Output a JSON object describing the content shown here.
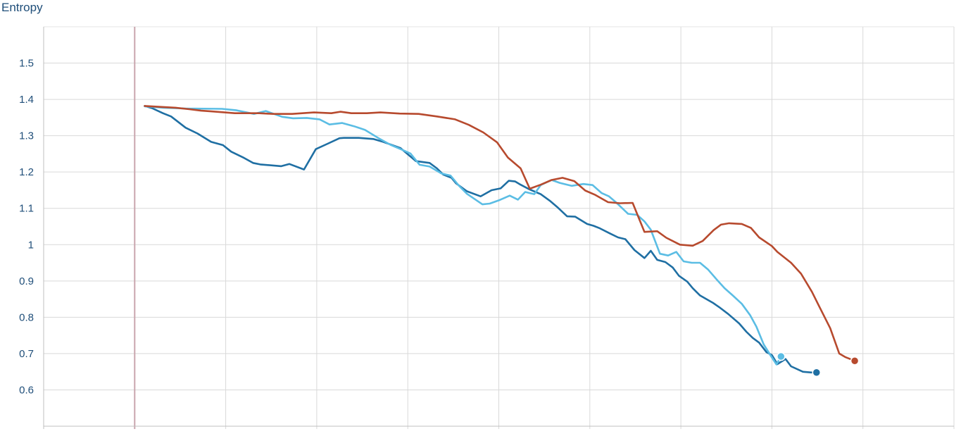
{
  "chart_data": {
    "type": "line",
    "title": "Entropy",
    "xlabel": "",
    "ylabel": "",
    "ylim": [
      0.5,
      1.6
    ],
    "yticks": [
      "0.6",
      "0.7",
      "0.8",
      "0.9",
      "1",
      "1.1",
      "1.2",
      "1.3",
      "1.4",
      "1.5"
    ],
    "x_gridlines": 10,
    "grid": true,
    "legend": "none",
    "series": [
      {
        "color": "#1f6fa3",
        "x": [
          1.11,
          1.19,
          1.31,
          1.4,
          1.56,
          1.69,
          1.84,
          1.97,
          2.06,
          2.2,
          2.3,
          2.38,
          2.61,
          2.7,
          2.86,
          2.99,
          3.12,
          3.25,
          3.3,
          3.46,
          3.62,
          3.73,
          3.92,
          4.09,
          4.24,
          4.32,
          4.39,
          4.48,
          4.53,
          4.65,
          4.8,
          4.92,
          5.02,
          5.11,
          5.18,
          5.24,
          5.33,
          5.46,
          5.56,
          5.64,
          5.75,
          5.84,
          5.97,
          6.04,
          6.11,
          6.22,
          6.31,
          6.39,
          6.49,
          6.6,
          6.67,
          6.74,
          6.83,
          6.91,
          6.98,
          7.07,
          7.13,
          7.21,
          7.35,
          7.42,
          7.52,
          7.64,
          7.72,
          7.79,
          7.86,
          7.94,
          8.0,
          8.06,
          8.15,
          8.21,
          8.34,
          8.43,
          8.49
        ],
        "y": [
          1.382,
          1.376,
          1.362,
          1.353,
          1.322,
          1.306,
          1.283,
          1.274,
          1.256,
          1.239,
          1.225,
          1.221,
          1.216,
          1.222,
          1.207,
          1.263,
          1.278,
          1.293,
          1.294,
          1.294,
          1.291,
          1.283,
          1.266,
          1.23,
          1.225,
          1.21,
          1.193,
          1.184,
          1.169,
          1.147,
          1.133,
          1.15,
          1.155,
          1.176,
          1.174,
          1.165,
          1.153,
          1.139,
          1.121,
          1.104,
          1.078,
          1.077,
          1.057,
          1.052,
          1.045,
          1.031,
          1.02,
          1.015,
          0.985,
          0.963,
          0.983,
          0.958,
          0.952,
          0.937,
          0.914,
          0.898,
          0.88,
          0.86,
          0.84,
          0.828,
          0.809,
          0.783,
          0.76,
          0.743,
          0.73,
          0.704,
          0.696,
          0.671,
          0.685,
          0.665,
          0.65,
          0.648,
          0.648
        ]
      },
      {
        "color": "#5bbde4",
        "x": [
          1.11,
          1.31,
          1.56,
          1.96,
          2.12,
          2.31,
          2.44,
          2.62,
          2.74,
          2.89,
          3.03,
          3.14,
          3.28,
          3.41,
          3.53,
          3.68,
          3.81,
          3.94,
          4.03,
          4.13,
          4.24,
          4.37,
          4.47,
          4.56,
          4.65,
          4.82,
          4.9,
          5.0,
          5.12,
          5.21,
          5.29,
          5.39,
          5.46,
          5.58,
          5.67,
          5.8,
          5.93,
          6.03,
          6.13,
          6.21,
          6.29,
          6.42,
          6.52,
          6.6,
          6.67,
          6.77,
          6.86,
          6.95,
          7.03,
          7.12,
          7.21,
          7.3,
          7.39,
          7.48,
          7.57,
          7.67,
          7.76,
          7.83,
          7.91,
          7.99,
          8.05,
          8.1
        ],
        "y": [
          1.381,
          1.377,
          1.375,
          1.374,
          1.37,
          1.36,
          1.368,
          1.352,
          1.348,
          1.349,
          1.345,
          1.331,
          1.335,
          1.326,
          1.316,
          1.293,
          1.275,
          1.261,
          1.251,
          1.22,
          1.215,
          1.196,
          1.19,
          1.163,
          1.14,
          1.111,
          1.113,
          1.122,
          1.135,
          1.124,
          1.145,
          1.139,
          1.164,
          1.178,
          1.17,
          1.162,
          1.167,
          1.164,
          1.142,
          1.133,
          1.116,
          1.085,
          1.082,
          1.064,
          1.041,
          0.975,
          0.97,
          0.98,
          0.954,
          0.95,
          0.95,
          0.931,
          0.905,
          0.88,
          0.86,
          0.837,
          0.806,
          0.774,
          0.725,
          0.693,
          0.67,
          0.692
        ]
      },
      {
        "color": "#b74a2e",
        "x": [
          1.11,
          1.31,
          1.45,
          1.6,
          1.73,
          1.84,
          1.99,
          2.1,
          2.24,
          2.37,
          2.52,
          2.73,
          2.97,
          3.16,
          3.26,
          3.38,
          3.55,
          3.7,
          3.91,
          4.12,
          4.32,
          4.52,
          4.67,
          4.83,
          4.98,
          5.1,
          5.24,
          5.34,
          5.46,
          5.58,
          5.7,
          5.83,
          5.95,
          6.06,
          6.2,
          6.33,
          6.47,
          6.6,
          6.74,
          6.84,
          6.99,
          7.13,
          7.24,
          7.36,
          7.44,
          7.53,
          7.67,
          7.77,
          7.86,
          8.0,
          8.06,
          8.21,
          8.32,
          8.44,
          8.52,
          8.64,
          8.74,
          8.81,
          8.91
        ],
        "y": [
          1.382,
          1.379,
          1.377,
          1.373,
          1.369,
          1.367,
          1.364,
          1.362,
          1.362,
          1.362,
          1.36,
          1.36,
          1.364,
          1.362,
          1.366,
          1.362,
          1.362,
          1.364,
          1.361,
          1.36,
          1.353,
          1.345,
          1.33,
          1.309,
          1.282,
          1.24,
          1.21,
          1.154,
          1.165,
          1.178,
          1.184,
          1.175,
          1.149,
          1.137,
          1.117,
          1.114,
          1.115,
          1.035,
          1.037,
          1.019,
          1.0,
          0.997,
          1.01,
          1.04,
          1.055,
          1.059,
          1.057,
          1.046,
          1.02,
          0.996,
          0.98,
          0.95,
          0.92,
          0.87,
          0.83,
          0.77,
          0.7,
          0.69,
          0.68
        ]
      }
    ]
  }
}
